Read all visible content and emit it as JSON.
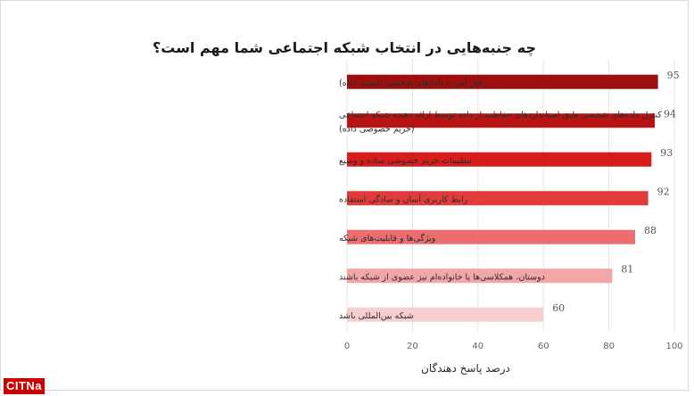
{
  "chart_data": {
    "type": "bar",
    "orientation": "horizontal",
    "title": "چه جنبه‌هایی در انتخاب شبکه اجتماعی شما مهم است؟",
    "xlabel": "درصد پاسخ دهندگان",
    "ylabel": "",
    "xlim": [
      0,
      100
    ],
    "xticks": [
      0,
      20,
      40,
      60,
      80,
      100
    ],
    "grid": true,
    "categories": [
      [
        "رفتار امن با داده‌های شخصی (امنیت داده)"
      ],
      [
        "کنترل داده‌های شخصی طبق استانداردهای حفاظت از داده توسط ارائه دهنده شبکه اجتماعی",
        "(حریم خصوصی داده)"
      ],
      [
        "تنظیمات حریم خصوصی ساده و وسیع"
      ],
      [
        "رابط کاربری آسان و سادگی استفاده"
      ],
      [
        "ویژگی‌ها و قابلیت‌های شبکه"
      ],
      [
        "دوستان، همکلاسی‌ها یا خانواده‌ام نیز عضوی از شبکه باشند"
      ],
      [
        "شبکه بین‌المللی باشد"
      ]
    ],
    "values": [
      95,
      94,
      93,
      92,
      88,
      81,
      60
    ],
    "colors": [
      "#9e1010",
      "#b81414",
      "#d81c1c",
      "#e23b3b",
      "#ec6e6e",
      "#f3a6a6",
      "#f7cfcf"
    ]
  },
  "logo": {
    "text": "CITNa"
  }
}
